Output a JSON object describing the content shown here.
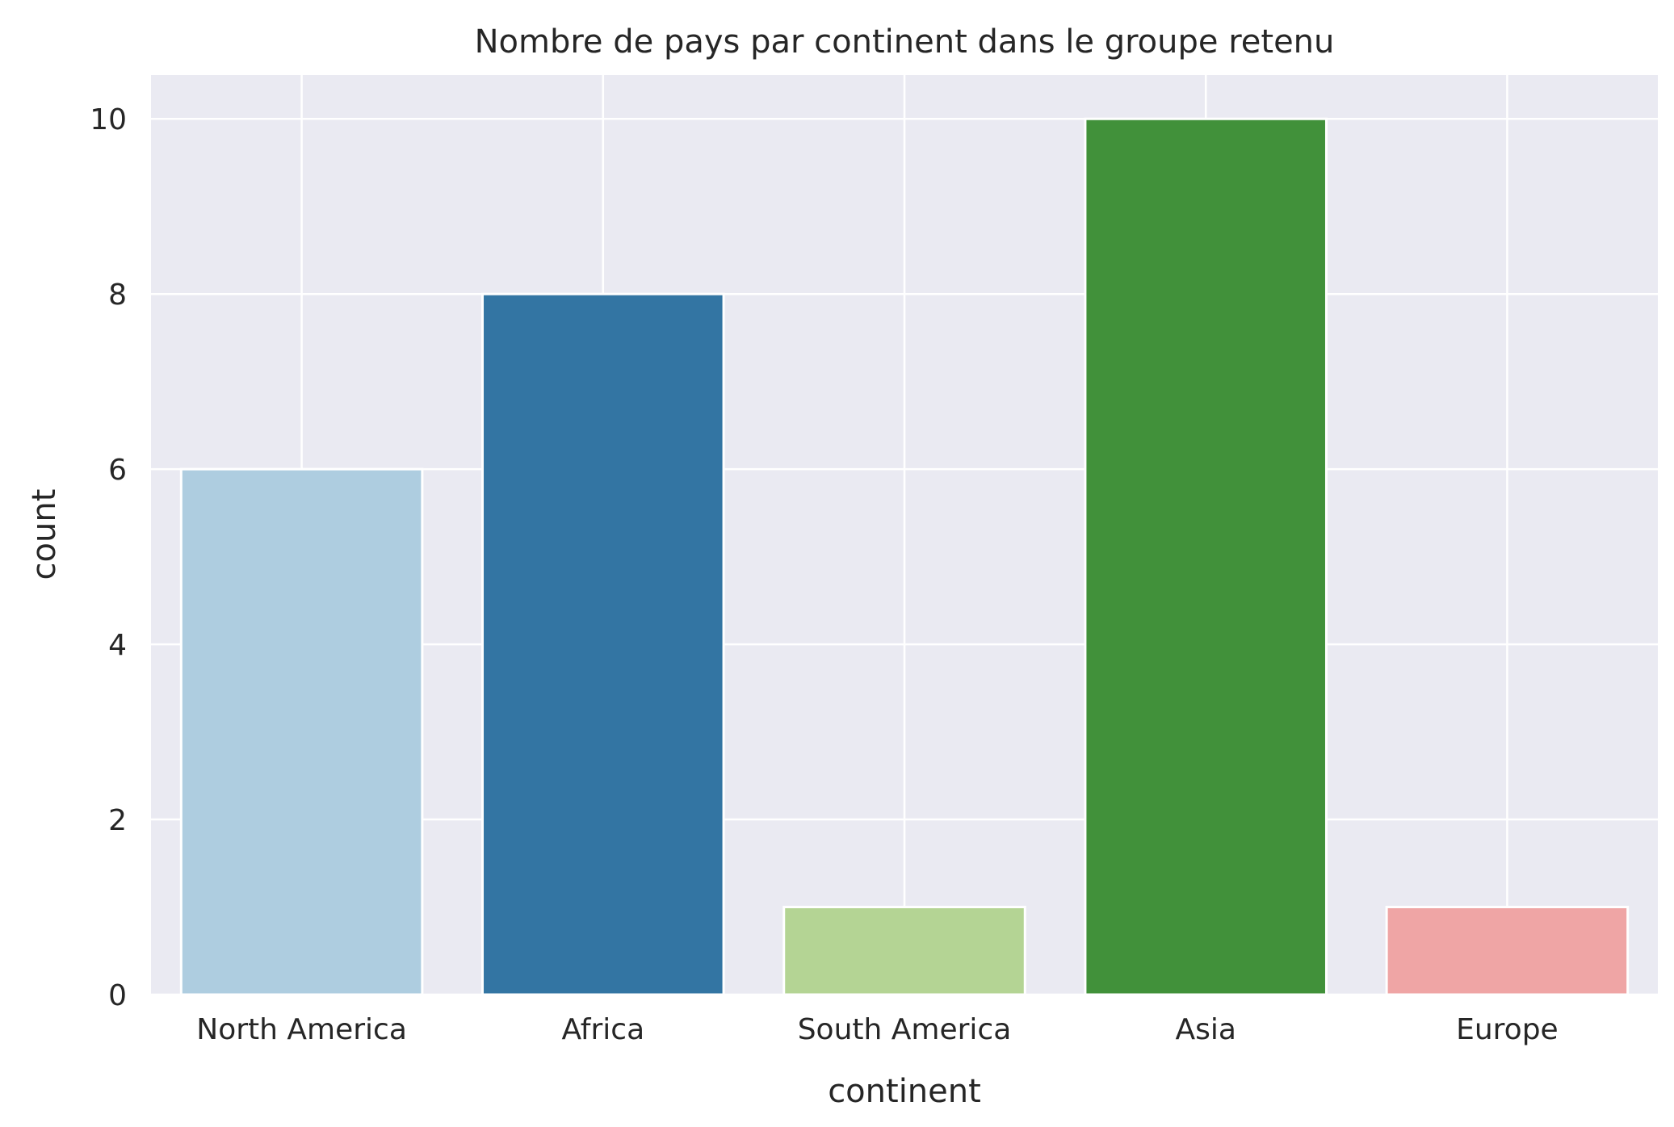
{
  "chart_data": {
    "type": "bar",
    "title": "Nombre de pays par continent dans le groupe retenu",
    "xlabel": "continent",
    "ylabel": "count",
    "categories": [
      "North America",
      "Africa",
      "South America",
      "Asia",
      "Europe"
    ],
    "values": [
      6,
      8,
      1,
      10,
      1
    ],
    "colors": [
      "#aecde0",
      "#3375a3",
      "#b4d494",
      "#41913a",
      "#efa5a5"
    ],
    "yticks": [
      "0",
      "2",
      "4",
      "6",
      "8",
      "10"
    ],
    "ylim": [
      0,
      10.5
    ],
    "grid": true,
    "background": "#eaeaf2",
    "grid_color": "#ffffff"
  }
}
